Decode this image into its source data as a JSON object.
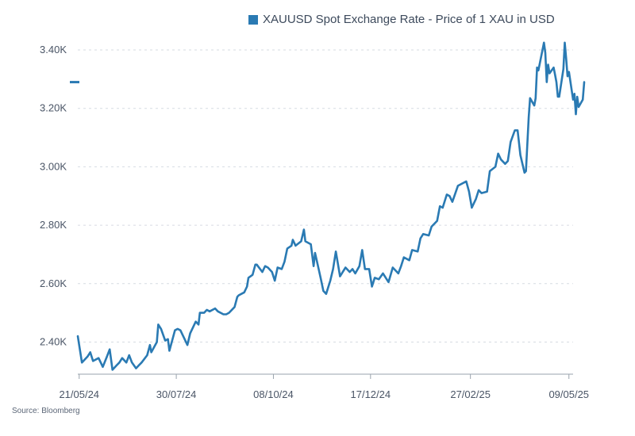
{
  "legend": {
    "label": "XAUUSD Spot Exchange Rate - Price of 1 XAU in USD",
    "color": "#2a7ab3"
  },
  "source": "Source: Bloomberg",
  "chart_data": {
    "type": "line",
    "title": "",
    "xlabel": "",
    "ylabel": "",
    "ylim": [
      2290,
      3430
    ],
    "y_ticks": [
      {
        "value": 2400,
        "label": "2.40K"
      },
      {
        "value": 2600,
        "label": "2.60K"
      },
      {
        "value": 2800,
        "label": "2.80K"
      },
      {
        "value": 3000,
        "label": "3.00K"
      },
      {
        "value": 3200,
        "label": "3.20K"
      },
      {
        "value": 3400,
        "label": "3.40K"
      }
    ],
    "x_start": "2024-05-20",
    "x_end": "2025-05-12",
    "x_ticks": [
      {
        "date": "2024-05-21",
        "label": "21/05/24"
      },
      {
        "date": "2024-07-30",
        "label": "30/07/24"
      },
      {
        "date": "2024-10-08",
        "label": "08/10/24"
      },
      {
        "date": "2024-12-17",
        "label": "17/12/24"
      },
      {
        "date": "2025-02-27",
        "label": "27/02/25"
      },
      {
        "date": "2025-05-09",
        "label": "09/05/25"
      }
    ],
    "grid": true,
    "legend_position": "top",
    "last_value_marker": 3290,
    "series": [
      {
        "name": "XAUUSD Spot Exchange Rate - Price of 1 XAU in USD",
        "color": "#2a7ab3",
        "points": [
          [
            "2024-05-20",
            2420
          ],
          [
            "2024-05-23",
            2330
          ],
          [
            "2024-05-27",
            2350
          ],
          [
            "2024-05-29",
            2365
          ],
          [
            "2024-05-31",
            2335
          ],
          [
            "2024-06-04",
            2345
          ],
          [
            "2024-06-07",
            2315
          ],
          [
            "2024-06-10",
            2350
          ],
          [
            "2024-06-12",
            2375
          ],
          [
            "2024-06-14",
            2305
          ],
          [
            "2024-06-17",
            2320
          ],
          [
            "2024-06-19",
            2330
          ],
          [
            "2024-06-21",
            2345
          ],
          [
            "2024-06-24",
            2330
          ],
          [
            "2024-06-26",
            2355
          ],
          [
            "2024-06-28",
            2330
          ],
          [
            "2024-07-01",
            2310
          ],
          [
            "2024-07-03",
            2320
          ],
          [
            "2024-07-05",
            2330
          ],
          [
            "2024-07-09",
            2355
          ],
          [
            "2024-07-11",
            2390
          ],
          [
            "2024-07-12",
            2365
          ],
          [
            "2024-07-16",
            2400
          ],
          [
            "2024-07-17",
            2460
          ],
          [
            "2024-07-19",
            2445
          ],
          [
            "2024-07-22",
            2405
          ],
          [
            "2024-07-24",
            2410
          ],
          [
            "2024-07-25",
            2370
          ],
          [
            "2024-07-29",
            2440
          ],
          [
            "2024-07-31",
            2445
          ],
          [
            "2024-08-02",
            2440
          ],
          [
            "2024-08-05",
            2410
          ],
          [
            "2024-08-07",
            2390
          ],
          [
            "2024-08-09",
            2430
          ],
          [
            "2024-08-13",
            2470
          ],
          [
            "2024-08-15",
            2460
          ],
          [
            "2024-08-16",
            2500
          ],
          [
            "2024-08-19",
            2500
          ],
          [
            "2024-08-21",
            2510
          ],
          [
            "2024-08-23",
            2505
          ],
          [
            "2024-08-27",
            2515
          ],
          [
            "2024-08-29",
            2505
          ],
          [
            "2024-09-02",
            2495
          ],
          [
            "2024-09-04",
            2495
          ],
          [
            "2024-09-06",
            2500
          ],
          [
            "2024-09-10",
            2520
          ],
          [
            "2024-09-12",
            2555
          ],
          [
            "2024-09-13",
            2560
          ],
          [
            "2024-09-17",
            2570
          ],
          [
            "2024-09-19",
            2590
          ],
          [
            "2024-09-20",
            2620
          ],
          [
            "2024-09-23",
            2630
          ],
          [
            "2024-09-25",
            2665
          ],
          [
            "2024-09-26",
            2665
          ],
          [
            "2024-09-30",
            2640
          ],
          [
            "2024-10-02",
            2660
          ],
          [
            "2024-10-04",
            2655
          ],
          [
            "2024-10-07",
            2640
          ],
          [
            "2024-10-09",
            2610
          ],
          [
            "2024-10-11",
            2655
          ],
          [
            "2024-10-14",
            2650
          ],
          [
            "2024-10-16",
            2675
          ],
          [
            "2024-10-18",
            2720
          ],
          [
            "2024-10-21",
            2730
          ],
          [
            "2024-10-22",
            2750
          ],
          [
            "2024-10-24",
            2730
          ],
          [
            "2024-10-28",
            2745
          ],
          [
            "2024-10-30",
            2785
          ],
          [
            "2024-10-31",
            2745
          ],
          [
            "2024-11-04",
            2735
          ],
          [
            "2024-11-06",
            2660
          ],
          [
            "2024-11-07",
            2705
          ],
          [
            "2024-11-08",
            2685
          ],
          [
            "2024-11-11",
            2620
          ],
          [
            "2024-11-13",
            2575
          ],
          [
            "2024-11-15",
            2565
          ],
          [
            "2024-11-18",
            2610
          ],
          [
            "2024-11-20",
            2650
          ],
          [
            "2024-11-22",
            2710
          ],
          [
            "2024-11-25",
            2625
          ],
          [
            "2024-11-27",
            2640
          ],
          [
            "2024-11-29",
            2655
          ],
          [
            "2024-12-02",
            2640
          ],
          [
            "2024-12-04",
            2650
          ],
          [
            "2024-12-06",
            2635
          ],
          [
            "2024-12-09",
            2660
          ],
          [
            "2024-12-11",
            2715
          ],
          [
            "2024-12-13",
            2650
          ],
          [
            "2024-12-16",
            2650
          ],
          [
            "2024-12-18",
            2590
          ],
          [
            "2024-12-20",
            2620
          ],
          [
            "2024-12-23",
            2615
          ],
          [
            "2024-12-26",
            2635
          ],
          [
            "2024-12-30",
            2605
          ],
          [
            "2025-01-02",
            2655
          ],
          [
            "2025-01-06",
            2635
          ],
          [
            "2025-01-08",
            2660
          ],
          [
            "2025-01-10",
            2690
          ],
          [
            "2025-01-14",
            2680
          ],
          [
            "2025-01-16",
            2715
          ],
          [
            "2025-01-20",
            2710
          ],
          [
            "2025-01-22",
            2755
          ],
          [
            "2025-01-24",
            2770
          ],
          [
            "2025-01-28",
            2765
          ],
          [
            "2025-01-30",
            2795
          ],
          [
            "2025-02-03",
            2815
          ],
          [
            "2025-02-05",
            2865
          ],
          [
            "2025-02-07",
            2860
          ],
          [
            "2025-02-10",
            2905
          ],
          [
            "2025-02-12",
            2900
          ],
          [
            "2025-02-14",
            2880
          ],
          [
            "2025-02-18",
            2935
          ],
          [
            "2025-02-20",
            2940
          ],
          [
            "2025-02-24",
            2950
          ],
          [
            "2025-02-26",
            2915
          ],
          [
            "2025-02-28",
            2860
          ],
          [
            "2025-03-03",
            2890
          ],
          [
            "2025-03-05",
            2920
          ],
          [
            "2025-03-07",
            2910
          ],
          [
            "2025-03-11",
            2915
          ],
          [
            "2025-03-13",
            2985
          ],
          [
            "2025-03-17",
            3000
          ],
          [
            "2025-03-19",
            3045
          ],
          [
            "2025-03-21",
            3025
          ],
          [
            "2025-03-24",
            3010
          ],
          [
            "2025-03-26",
            3020
          ],
          [
            "2025-03-28",
            3085
          ],
          [
            "2025-03-31",
            3125
          ],
          [
            "2025-04-02",
            3125
          ],
          [
            "2025-04-04",
            3040
          ],
          [
            "2025-04-07",
            2980
          ],
          [
            "2025-04-08",
            2985
          ],
          [
            "2025-04-10",
            3170
          ],
          [
            "2025-04-11",
            3235
          ],
          [
            "2025-04-14",
            3210
          ],
          [
            "2025-04-15",
            3235
          ],
          [
            "2025-04-16",
            3340
          ],
          [
            "2025-04-17",
            3330
          ],
          [
            "2025-04-21",
            3425
          ],
          [
            "2025-04-22",
            3390
          ],
          [
            "2025-04-23",
            3290
          ],
          [
            "2025-04-24",
            3350
          ],
          [
            "2025-04-25",
            3320
          ],
          [
            "2025-04-28",
            3340
          ],
          [
            "2025-04-29",
            3315
          ],
          [
            "2025-04-30",
            3290
          ],
          [
            "2025-05-01",
            3240
          ],
          [
            "2025-05-02",
            3240
          ],
          [
            "2025-05-05",
            3335
          ],
          [
            "2025-05-06",
            3425
          ],
          [
            "2025-05-07",
            3370
          ],
          [
            "2025-05-08",
            3310
          ],
          [
            "2025-05-09",
            3325
          ],
          [
            "2025-05-12",
            3230
          ],
          [
            "2025-05-13",
            3250
          ],
          [
            "2025-05-14",
            3180
          ],
          [
            "2025-05-15",
            3240
          ],
          [
            "2025-05-16",
            3205
          ],
          [
            "2025-05-19",
            3230
          ],
          [
            "2025-05-20",
            3290
          ]
        ]
      }
    ]
  }
}
